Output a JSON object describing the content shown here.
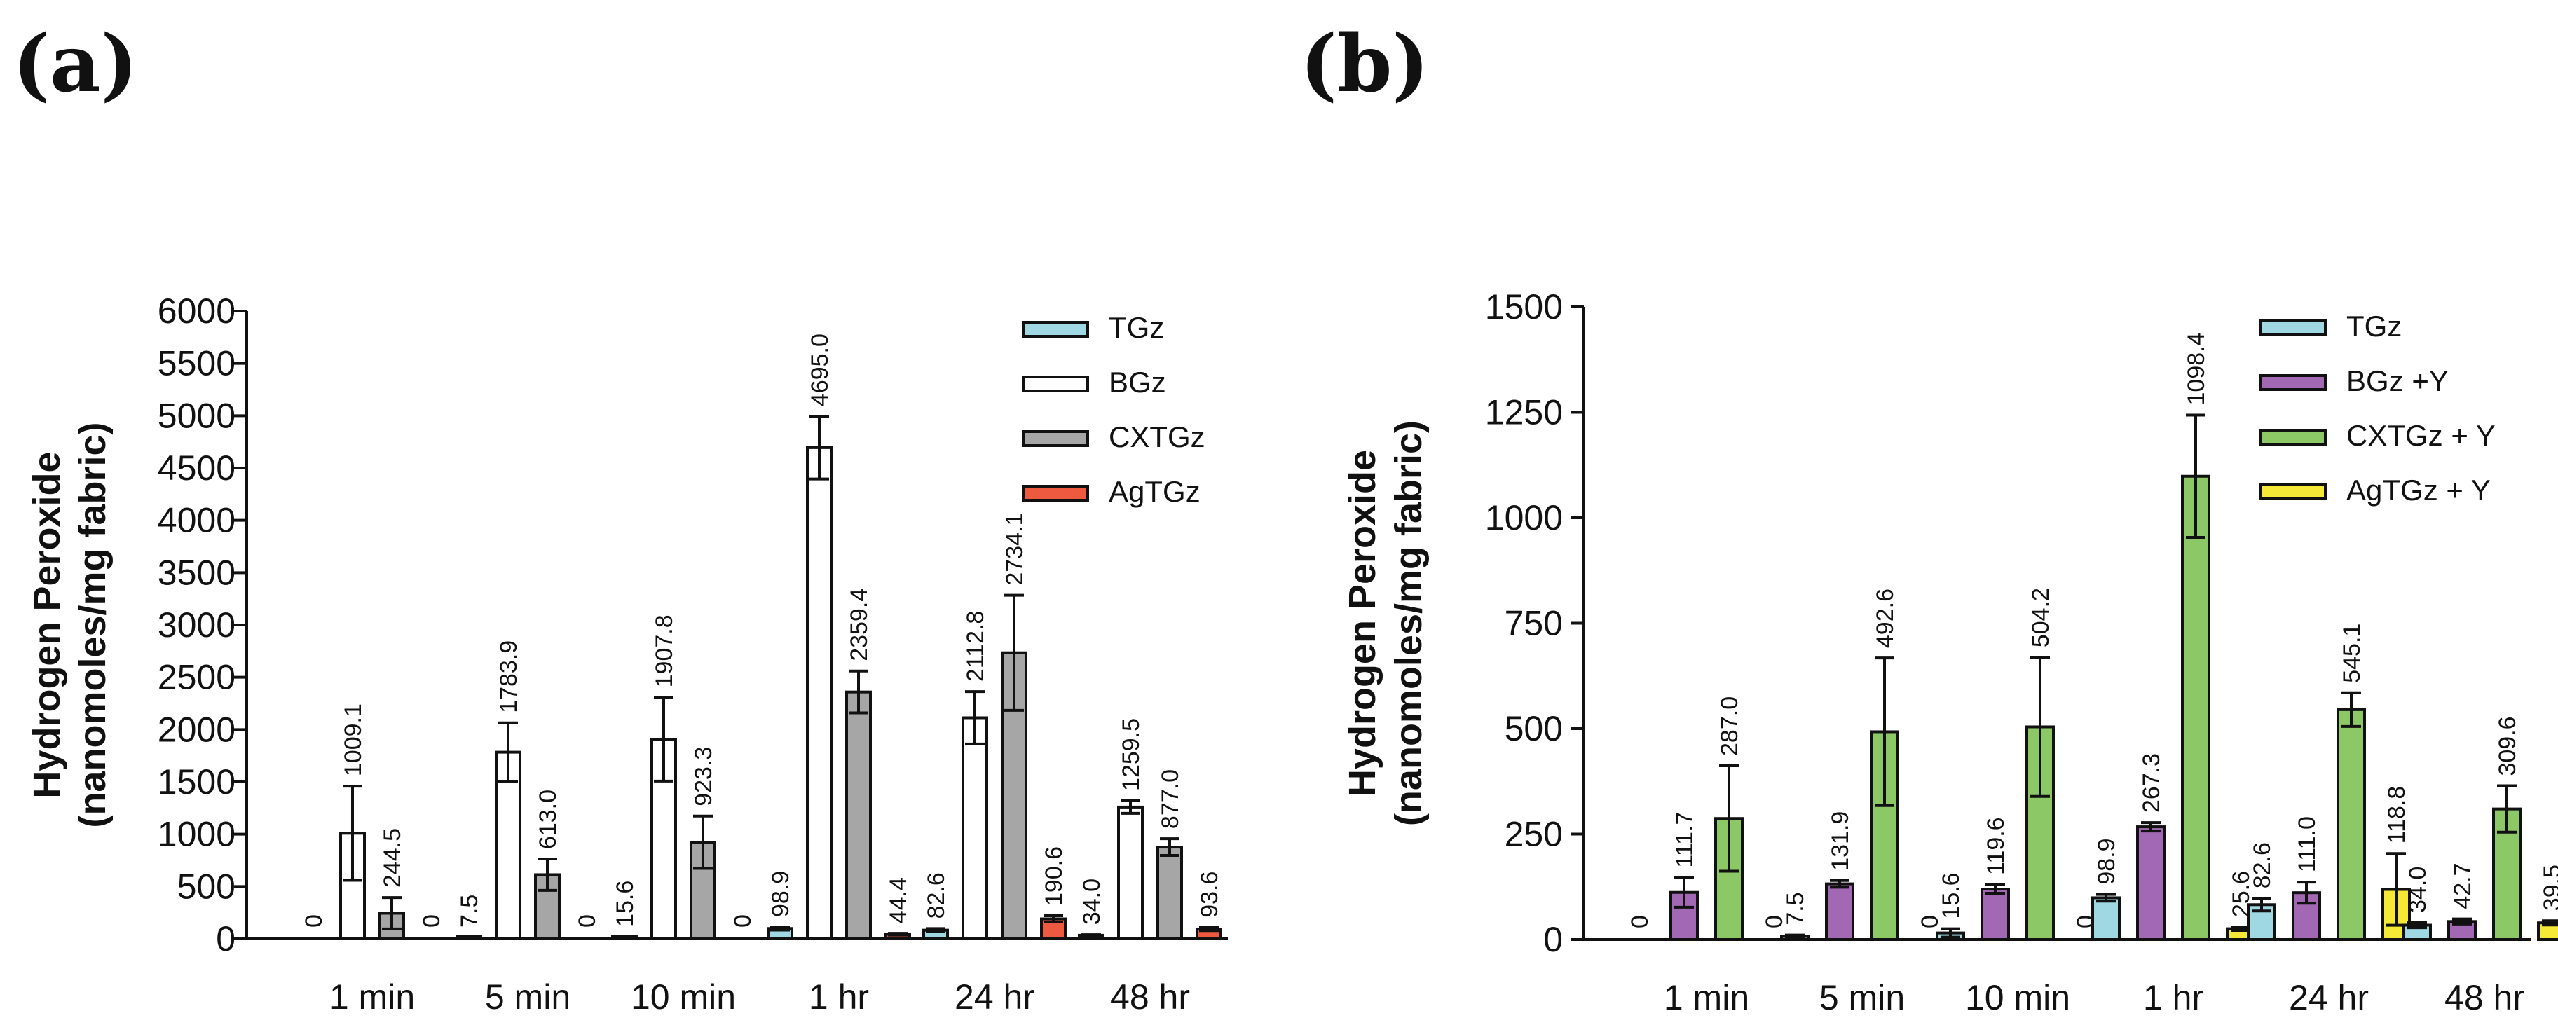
{
  "chart_data": [
    {
      "panel": "(a)",
      "type": "bar",
      "title": "",
      "ylabel": "Hydrogen Peroxide",
      "ylabel2": "(nanomoles/mg fabric)",
      "xlabel": "",
      "ylim": [
        0,
        6000
      ],
      "yticks": [
        0,
        500,
        1000,
        1500,
        2000,
        2500,
        3000,
        3500,
        4000,
        4500,
        5000,
        5500,
        6000
      ],
      "categories": [
        "1 min",
        "5 min",
        "10 min",
        "1 hr",
        "24 hr",
        "48 hr"
      ],
      "legend_position": "top-right",
      "series": [
        {
          "name": "TGz",
          "color": "#9fd8e3",
          "values": [
            0,
            7.5,
            15.6,
            98.9,
            82.6,
            34.0
          ],
          "labels": [
            "0",
            "7.5",
            "15.6",
            "98.9",
            "82.6",
            "34.0"
          ],
          "errors": [
            0,
            4,
            5,
            15,
            15,
            5
          ]
        },
        {
          "name": "BGz",
          "color": "#ffffff",
          "values": [
            1009.1,
            1783.9,
            1907.8,
            4695.0,
            2112.8,
            1259.5
          ],
          "labels": [
            "1009.1",
            "1783.9",
            "1907.8",
            "4695.0",
            "2112.8",
            "1259.5"
          ],
          "errors": [
            450,
            280,
            400,
            300,
            250,
            60
          ]
        },
        {
          "name": "CXTGz",
          "color": "#a6a6a6",
          "values": [
            244.5,
            613.0,
            923.3,
            2359.4,
            2734.1,
            877.0
          ],
          "labels": [
            "244.5",
            "613.0",
            "923.3",
            "2359.4",
            "2734.1",
            "877.0"
          ],
          "errors": [
            150,
            150,
            250,
            200,
            550,
            80
          ]
        },
        {
          "name": "AgTGz",
          "color": "#ee5a3f",
          "values": [
            0,
            0,
            0,
            44.4,
            190.6,
            93.6
          ],
          "labels": [
            "0",
            "0",
            "0",
            "44.4",
            "190.6",
            "93.6"
          ],
          "errors": [
            0,
            0,
            0,
            8,
            30,
            15
          ]
        }
      ]
    },
    {
      "panel": "(b)",
      "type": "bar",
      "title": "",
      "ylabel": "Hydrogen Peroxide",
      "ylabel2": "(nanomoles/mg fabric)",
      "xlabel": "",
      "ylim": [
        0,
        1500
      ],
      "yticks": [
        0,
        250,
        500,
        750,
        1000,
        1250,
        1500
      ],
      "categories": [
        "1 min",
        "5 min",
        "10 min",
        "1 hr",
        "24 hr",
        "48 hr"
      ],
      "legend_position": "top-right",
      "series": [
        {
          "name": "TGz",
          "color": "#9fd8e3",
          "values": [
            0,
            7.5,
            15.6,
            98.9,
            82.6,
            34.0
          ],
          "labels": [
            "0",
            "7.5",
            "15.6",
            "98.9",
            "82.6",
            "34.0"
          ],
          "errors": [
            0,
            3,
            10,
            8,
            15,
            6
          ]
        },
        {
          "name": "BGz +Y",
          "color": "#a368b3",
          "values": [
            111.7,
            131.9,
            119.6,
            267.3,
            111.0,
            42.7
          ],
          "labels": [
            "111.7",
            "131.9",
            "119.6",
            "267.3",
            "111.0",
            "42.7"
          ],
          "errors": [
            35,
            8,
            10,
            10,
            25,
            6
          ]
        },
        {
          "name": "CXTGz + Y",
          "color": "#8cc866",
          "values": [
            287.0,
            492.6,
            504.2,
            1098.4,
            545.1,
            309.6
          ],
          "labels": [
            "287.0",
            "492.6",
            "504.2",
            "1098.4",
            "545.1",
            "309.6"
          ],
          "errors": [
            125,
            175,
            165,
            145,
            40,
            55
          ]
        },
        {
          "name": "AgTGz + Y",
          "color": "#f5e837",
          "values": [
            0,
            0,
            0,
            25.6,
            118.8,
            39.5
          ],
          "labels": [
            "0",
            "0",
            "0",
            "25.6",
            "118.8",
            "39.5"
          ],
          "errors": [
            0,
            0,
            0,
            4,
            85,
            5
          ]
        }
      ]
    }
  ]
}
